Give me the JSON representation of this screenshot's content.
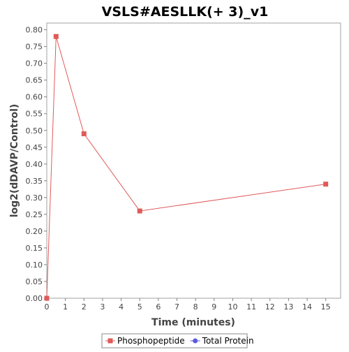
{
  "chart_data": {
    "type": "line",
    "title": "VSLS#AESLLK(+ 3)_v1",
    "xlabel": "Time (minutes)",
    "ylabel": "log2(dDAVP/Control)",
    "xlim": [
      0,
      15.8
    ],
    "ylim": [
      0,
      0.82
    ],
    "x_ticks": [
      0,
      1,
      2,
      3,
      4,
      5,
      6,
      7,
      8,
      9,
      10,
      11,
      12,
      13,
      14,
      15
    ],
    "y_ticks": [
      0.0,
      0.05,
      0.1,
      0.15,
      0.2,
      0.25,
      0.3,
      0.35,
      0.4,
      0.45,
      0.5,
      0.55,
      0.6,
      0.65,
      0.7,
      0.75,
      0.8
    ],
    "grid": false,
    "legend_position": "bottom",
    "series": [
      {
        "name": "Phosphopeptide",
        "color": "#e05a5a",
        "marker": "square",
        "x": [
          0,
          0.5,
          2,
          5,
          15
        ],
        "y": [
          0.0,
          0.78,
          0.49,
          0.26,
          0.34
        ]
      },
      {
        "name": "Total Protein",
        "color": "#5a5ae0",
        "marker": "circle",
        "x": [],
        "y": []
      }
    ]
  }
}
